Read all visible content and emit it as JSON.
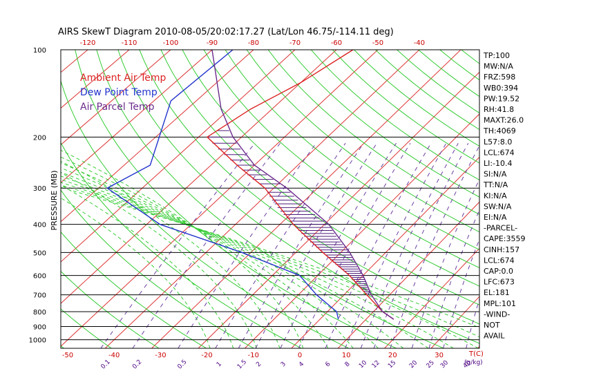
{
  "chart_data": {
    "type": "skew-t",
    "title": "AIRS SkewT Diagram 2010-08-05/20:02:17.27 (Lat/Lon 46.75/-114.11 deg)",
    "ylabel": "PRESSURE (MB)",
    "x_unit_label": "T(C)",
    "mixing_unit_label": "(g/kg)",
    "pressure_ticks": [
      "100",
      "200",
      "300",
      "400",
      "500",
      "600",
      "700",
      "800",
      "900",
      "1000"
    ],
    "pressure_levels": [
      100,
      200,
      300,
      400,
      500,
      600,
      700,
      800,
      900,
      1000
    ],
    "top_temp_ticks": [
      "-120",
      "-110",
      "-100",
      "-90",
      "-80",
      "-70",
      "-60",
      "-50",
      "-40"
    ],
    "bottom_temp_ticks": [
      "-50",
      "-40",
      "-30",
      "-20",
      "-10",
      "0",
      "10",
      "20",
      "30"
    ],
    "mixing_ratio_labels": [
      "0.1",
      "0.2",
      "0.5",
      "1",
      "1.5",
      "2",
      "3",
      "4",
      "6",
      "8",
      "10",
      "12",
      "15",
      "20",
      "25",
      "30",
      "40"
    ],
    "legend": [
      {
        "label": "Ambient Air Temp",
        "color": "#dd2222"
      },
      {
        "label": "Dew Point Temp",
        "color": "#2233cc"
      },
      {
        "label": "Air Parcel Temp",
        "color": "#6a2a8c"
      }
    ],
    "series": [
      {
        "name": "Ambient Air Temp",
        "points": [
          [
            100,
            -56
          ],
          [
            130,
            -60
          ],
          [
            160,
            -65
          ],
          [
            200,
            -68
          ],
          [
            250,
            -54
          ],
          [
            300,
            -42
          ],
          [
            400,
            -27
          ],
          [
            500,
            -14
          ],
          [
            600,
            -3
          ],
          [
            700,
            5
          ],
          [
            800,
            12
          ],
          [
            850,
            16
          ]
        ]
      },
      {
        "name": "Dew Point Temp",
        "points": [
          [
            100,
            -85
          ],
          [
            150,
            -86
          ],
          [
            250,
            -74
          ],
          [
            300,
            -78
          ],
          [
            400,
            -57
          ],
          [
            500,
            -32
          ],
          [
            600,
            -14
          ],
          [
            700,
            -6
          ],
          [
            800,
            2
          ],
          [
            850,
            4
          ]
        ]
      },
      {
        "name": "Air Parcel Temp",
        "points": [
          [
            100,
            -90
          ],
          [
            160,
            -72
          ],
          [
            200,
            -62
          ],
          [
            250,
            -50
          ],
          [
            300,
            -37
          ],
          [
            400,
            -19
          ],
          [
            500,
            -8
          ],
          [
            600,
            0
          ],
          [
            700,
            6
          ],
          [
            800,
            12
          ],
          [
            850,
            16
          ]
        ]
      }
    ],
    "indices": [
      "TP:100",
      "MW:N/A",
      "FRZ:598",
      "WB0:394",
      "PW:19.52",
      "RH:41.8",
      "MAXT:26.0",
      "TH:4069",
      "L57:8.0",
      "LCL:674",
      "LI:-10.4",
      "SI:N/A",
      "TT:N/A",
      "KI:N/A",
      "SW:N/A",
      "EI:N/A",
      "-PARCEL-",
      "CAPE:3559",
      "CINH:157",
      "LCL:674",
      "CAP:0.0",
      "LFC:673",
      "EL:181",
      "MPL:101",
      "-WIND-",
      "NOT",
      "AVAIL"
    ],
    "colors": {
      "isotherm": "#dd3333",
      "dry_adiabat": "#33cc33",
      "moist_adiabat": "#33cc33",
      "mixing_ratio": "#6a3ea1",
      "axis": "#000000"
    },
    "grid": true
  }
}
